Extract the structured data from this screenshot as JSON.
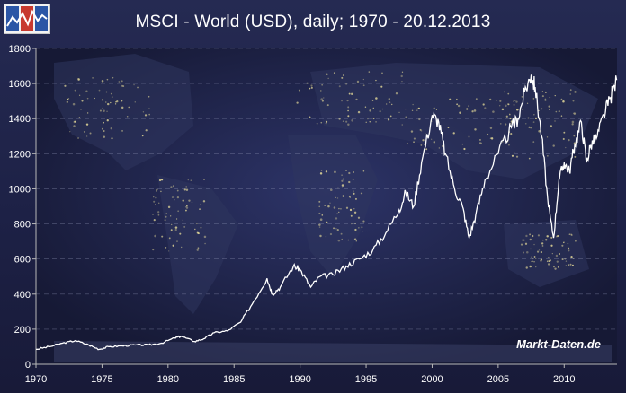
{
  "chart_data": {
    "type": "line",
    "title": "MSCI - World (USD), daily; 1970 - 20.12.2013",
    "xlabel": "",
    "ylabel": "",
    "xlim": [
      1970,
      2014
    ],
    "ylim": [
      0,
      1800
    ],
    "x_ticks": [
      "1970",
      "1975",
      "1980",
      "1985",
      "1990",
      "1995",
      "2000",
      "2005",
      "2010"
    ],
    "y_ticks": [
      "0",
      "200",
      "400",
      "600",
      "800",
      "1000",
      "1200",
      "1400",
      "1600",
      "1800"
    ],
    "grid": true,
    "series": [
      {
        "color": "#ffffff",
        "x": [
          1970.0,
          1971.0,
          1972.0,
          1973.0,
          1974.0,
          1974.8,
          1975.5,
          1976.5,
          1977.5,
          1978.5,
          1979.5,
          1980.5,
          1981.0,
          1982.0,
          1982.7,
          1983.5,
          1984.5,
          1985.5,
          1986.5,
          1987.5,
          1987.9,
          1988.5,
          1989.5,
          1990.0,
          1990.8,
          1991.5,
          1992.5,
          1993.5,
          1994.5,
          1995.5,
          1996.5,
          1997.5,
          1998.0,
          1998.6,
          1999.2,
          2000.0,
          2000.5,
          2001.0,
          2001.7,
          2002.3,
          2002.8,
          2003.3,
          2004.0,
          2005.0,
          2006.0,
          2006.5,
          2007.0,
          2007.5,
          2007.8,
          2008.3,
          2008.8,
          2009.2,
          2009.6,
          2010.0,
          2010.4,
          2010.8,
          2011.3,
          2011.7,
          2012.0,
          2012.5,
          2013.0,
          2013.5,
          2013.97
        ],
        "values": [
          85,
          100,
          120,
          135,
          110,
          85,
          100,
          105,
          110,
          110,
          120,
          150,
          160,
          130,
          145,
          180,
          190,
          240,
          360,
          490,
          400,
          440,
          560,
          540,
          440,
          500,
          510,
          560,
          600,
          650,
          750,
          880,
          980,
          900,
          1150,
          1420,
          1380,
          1200,
          1000,
          900,
          720,
          850,
          1050,
          1200,
          1350,
          1400,
          1550,
          1650,
          1580,
          1300,
          900,
          720,
          1050,
          1150,
          1100,
          1250,
          1380,
          1150,
          1250,
          1300,
          1420,
          1520,
          1620
        ]
      }
    ],
    "watermark": "Markt-Daten.de"
  }
}
